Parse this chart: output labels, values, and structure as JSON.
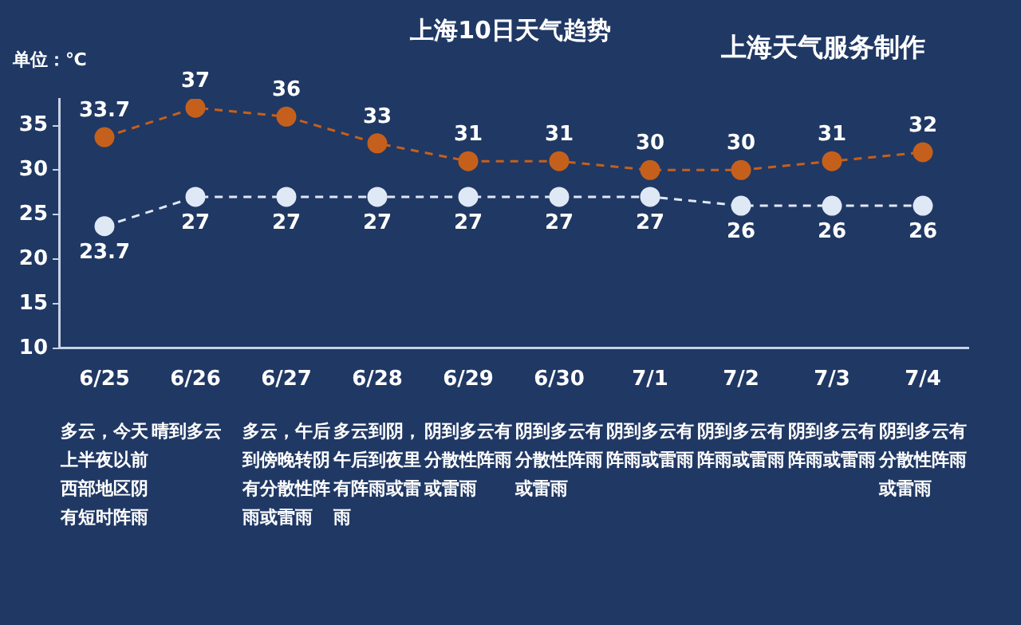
{
  "chart_data": {
    "type": "line",
    "title": "上海10日天气趋势",
    "subtitle": "上海天气服务制作",
    "ylabel": "单位：℃",
    "categories": [
      "6/25",
      "6/26",
      "6/27",
      "6/28",
      "6/29",
      "6/30",
      "7/1",
      "7/2",
      "7/3",
      "7/4"
    ],
    "series": [
      {
        "color": "#c5601c",
        "values": [
          33.7,
          37,
          36,
          33,
          31,
          31,
          30,
          30,
          31,
          32
        ]
      },
      {
        "color": "#dfe8f5",
        "values": [
          23.7,
          27,
          27,
          27,
          27,
          27,
          27,
          26,
          26,
          26
        ]
      }
    ],
    "ylim": [
      10,
      38
    ],
    "yticks": [
      10,
      15,
      20,
      25,
      30,
      35
    ],
    "grid": false,
    "legend": false,
    "marker": "circle",
    "line_style": "dashed",
    "data_labels": true,
    "annotations": [
      "多云，今天上半夜以前西部地区阴有短时阵雨",
      "晴到多云",
      "多云，午后到傍晚转阴有分散性阵雨或雷雨",
      "多云到阴，午后到夜里有阵雨或雷雨",
      "阴到多云有分散性阵雨或雷雨",
      "阴到多云有分散性阵雨或雷雨",
      "阴到多云有阵雨或雷雨",
      "阴到多云有阵雨或雷雨",
      "阴到多云有阵雨或雷雨",
      "阴到多云有分散性阵雨或雷雨"
    ]
  }
}
